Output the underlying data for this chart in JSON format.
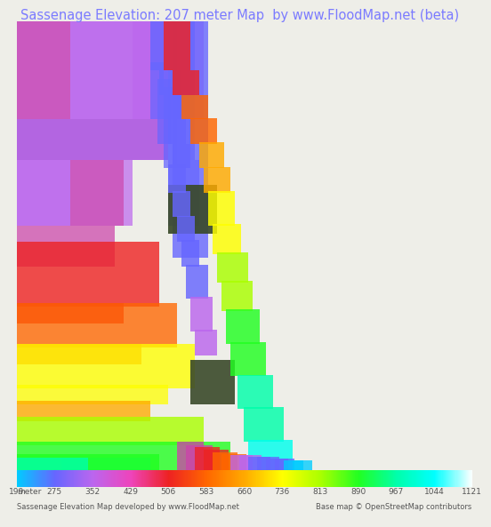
{
  "title": "Sassenage Elevation: 207 meter Map  by www.FloodMap.net (beta)",
  "title_color": "#7b7bff",
  "title_fontsize": 10.5,
  "background_color": "#eeeee8",
  "footer_left": "Sassenage Elevation Map developed by www.FloodMap.net",
  "footer_right": "Base map © OpenStreetMap contributors",
  "colorbar_label": "meter",
  "colorbar_ticks": [
    199,
    275,
    352,
    429,
    506,
    583,
    660,
    736,
    813,
    890,
    967,
    1044,
    1121
  ],
  "colorbar_colors": [
    "#00ccff",
    "#6666ff",
    "#bb66ee",
    "#ee44bb",
    "#ee2222",
    "#ff6600",
    "#ffaa00",
    "#ffff00",
    "#aaff00",
    "#22ff22",
    "#00ffaa",
    "#00ffff",
    "#ffffff"
  ],
  "map_bg": "#8ec9be",
  "elev_colors": {
    "199": "#00ccff",
    "275": "#6666ff",
    "352": "#bb66ee",
    "429": "#cc44aa",
    "506": "#ee2222",
    "583": "#ff6600",
    "660": "#ffaa00",
    "736": "#ffff00",
    "813": "#aaff00",
    "890": "#22ff22",
    "967": "#00ffaa",
    "1044": "#00ffee",
    "1121": "#ffffff"
  }
}
